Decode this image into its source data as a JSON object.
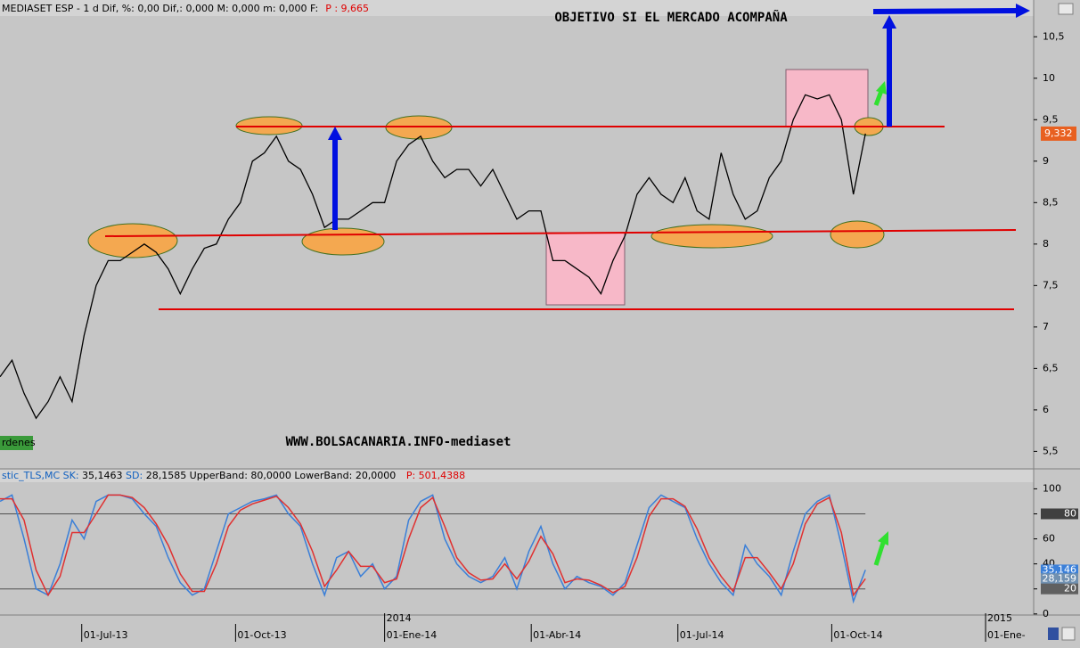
{
  "chart_data": [
    {
      "type": "line",
      "title": "OBJETIVO SI EL MERCADO ACOMPAÑA",
      "header_segments": [
        {
          "text": "MEDIASET ESP -  1 d Dif, %: 0,00 Dif,: 0,000 M: 0,000 m: 0,000 F:",
          "color": "#000000"
        },
        {
          "text": "P : 9,665",
          "color": "#e00000"
        }
      ],
      "annotations": [
        "WWW.BOLSACANARIA.INFO-mediaset",
        "rdenes"
      ],
      "x": [
        0,
        5,
        10,
        15,
        20,
        25,
        30,
        35,
        40,
        45,
        50,
        55,
        60,
        65,
        70,
        75,
        80,
        85,
        90,
        95,
        100,
        105,
        110,
        115,
        120,
        125,
        130,
        135,
        140,
        145,
        150,
        155,
        160,
        165,
        170,
        175,
        180,
        185,
        190,
        195,
        200,
        205,
        210,
        215,
        220,
        225,
        230,
        235,
        240,
        245,
        250,
        255,
        260,
        265,
        270,
        275,
        280,
        285,
        290,
        295,
        300,
        305,
        310,
        315,
        320,
        325,
        330,
        335,
        340,
        345,
        350,
        355,
        360
      ],
      "xlim": [
        0,
        430
      ],
      "series": [
        {
          "color": "#000000",
          "values": [
            6.4,
            6.6,
            6.2,
            5.9,
            6.1,
            6.4,
            6.1,
            6.9,
            7.5,
            7.8,
            7.8,
            7.9,
            8.0,
            7.9,
            7.7,
            7.4,
            7.7,
            7.95,
            8.0,
            8.3,
            8.5,
            9.0,
            9.1,
            9.3,
            9.0,
            8.9,
            8.6,
            8.2,
            8.3,
            8.3,
            8.4,
            8.5,
            8.5,
            9.0,
            9.2,
            9.3,
            9.0,
            8.8,
            8.9,
            8.9,
            8.7,
            8.9,
            8.6,
            8.3,
            8.4,
            8.4,
            7.8,
            7.8,
            7.7,
            7.6,
            7.4,
            7.8,
            8.1,
            8.6,
            8.8,
            8.6,
            8.5,
            8.8,
            8.4,
            8.3,
            9.1,
            8.6,
            8.3,
            8.4,
            8.8,
            9.0,
            9.5,
            9.8,
            9.75,
            9.8,
            9.5,
            8.6,
            9.332
          ]
        }
      ],
      "ylim": [
        5.3,
        10.75
      ],
      "yticks": [
        {
          "value": 5.5,
          "label": "5,5"
        },
        6,
        {
          "value": 6.5,
          "label": "6,5"
        },
        7,
        {
          "value": 7.5,
          "label": "7,5"
        },
        8,
        {
          "value": 8.5,
          "label": "8,5"
        },
        9,
        {
          "value": 9.5,
          "label": "9,5"
        },
        10,
        {
          "value": 10.5,
          "label": "10,5"
        }
      ],
      "last_label": {
        "value": 9.332,
        "label": "9,332"
      }
    },
    {
      "type": "line",
      "header_segments": [
        {
          "text": "stic_TLS,MC SK:",
          "color": "#1060c0"
        },
        {
          "text": " 35,1463 ",
          "color": "#000000"
        },
        {
          "text": "SD:",
          "color": "#1060c0"
        },
        {
          "text": " 28,1585 UpperBand: 80,0000 LowerBand: 20,0000 ",
          "color": "#000000"
        },
        {
          "text": "P: 501,4388",
          "color": "#e00000"
        }
      ],
      "series": [
        {
          "color": "#3a7fd8",
          "values": [
            90,
            95,
            60,
            20,
            15,
            40,
            75,
            60,
            90,
            95,
            95,
            92,
            80,
            70,
            45,
            25,
            15,
            20,
            50,
            80,
            85,
            90,
            92,
            95,
            80,
            70,
            40,
            15,
            45,
            50,
            30,
            40,
            20,
            30,
            75,
            90,
            95,
            60,
            40,
            30,
            25,
            30,
            45,
            20,
            50,
            70,
            40,
            20,
            30,
            25,
            22,
            15,
            25,
            55,
            85,
            95,
            90,
            85,
            60,
            40,
            25,
            15,
            55,
            40,
            30,
            15,
            50,
            80,
            90,
            95,
            55,
            10,
            35.1463
          ]
        },
        {
          "color": "#e03030",
          "values": [
            92,
            92,
            75,
            35,
            15,
            30,
            65,
            65,
            80,
            95,
            95,
            93,
            85,
            72,
            55,
            32,
            18,
            18,
            40,
            70,
            83,
            88,
            91,
            94,
            85,
            72,
            50,
            22,
            35,
            50,
            38,
            38,
            25,
            28,
            60,
            85,
            93,
            70,
            45,
            33,
            27,
            28,
            40,
            28,
            42,
            62,
            48,
            25,
            28,
            27,
            23,
            17,
            22,
            45,
            78,
            92,
            92,
            86,
            68,
            45,
            30,
            18,
            45,
            45,
            33,
            20,
            40,
            72,
            88,
            93,
            65,
            15,
            28.1585
          ]
        }
      ],
      "ylim": [
        -8,
        106
      ],
      "yticks": [
        0,
        20,
        40,
        60,
        80,
        100
      ],
      "bands": [
        80,
        20
      ],
      "level_labels": [
        {
          "value": 80,
          "label": "80",
          "color": "#404040"
        },
        {
          "value": 35.146,
          "label": "35,146",
          "color": "#3a7fd8"
        },
        {
          "value": 28.159,
          "label": "28,159",
          "color": "#7090b0"
        },
        {
          "value": 20,
          "label": "20",
          "color": "#606060"
        }
      ],
      "xticks": [
        {
          "value": 34,
          "label": "01-Jul-13"
        },
        {
          "value": 98,
          "label": "01-Oct-13"
        },
        {
          "value": 160,
          "label": "01-Ene-14"
        },
        {
          "value": 221,
          "label": "01-Abr-14"
        },
        {
          "value": 282,
          "label": "01-Jul-14"
        },
        {
          "value": 346,
          "label": "01-Oct-14"
        },
        {
          "value": 410,
          "label": "01-Ene-"
        }
      ],
      "year_ticks": [
        {
          "value": 160,
          "label": "2014"
        },
        {
          "value": 410,
          "label": "2015"
        }
      ]
    }
  ]
}
